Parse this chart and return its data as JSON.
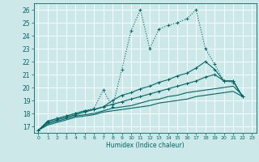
{
  "xlabel": "Humidex (Indice chaleur)",
  "bg_color": "#cce8e8",
  "grid_color": "#ffffff",
  "line_color": "#006666",
  "xlim": [
    -0.5,
    23.5
  ],
  "ylim": [
    16.5,
    26.5
  ],
  "xticks": [
    0,
    1,
    2,
    3,
    4,
    5,
    6,
    7,
    8,
    9,
    10,
    11,
    12,
    13,
    14,
    15,
    16,
    17,
    18,
    19,
    20,
    21,
    22,
    23
  ],
  "yticks": [
    17,
    18,
    19,
    20,
    21,
    22,
    23,
    24,
    25,
    26
  ],
  "lines": [
    {
      "x": [
        0,
        1,
        2,
        3,
        4,
        5,
        6,
        7,
        8,
        9,
        10,
        11,
        12,
        13,
        14,
        15,
        16,
        17,
        18,
        19,
        20,
        21,
        22
      ],
      "y": [
        16.7,
        17.4,
        17.6,
        17.8,
        18.0,
        18.2,
        18.4,
        19.8,
        18.5,
        21.4,
        24.4,
        26.0,
        23.0,
        24.5,
        24.8,
        25.0,
        25.3,
        26.0,
        23.0,
        21.8,
        20.5,
        20.4,
        19.3
      ],
      "style": ":",
      "lw": 0.8,
      "marker": "+",
      "ms": 3.5
    },
    {
      "x": [
        0,
        1,
        2,
        3,
        4,
        5,
        6,
        7,
        8,
        9,
        10,
        11,
        12,
        13,
        14,
        15,
        16,
        17,
        18,
        19,
        20,
        21,
        22
      ],
      "y": [
        16.7,
        17.4,
        17.6,
        17.8,
        18.0,
        18.2,
        18.3,
        18.5,
        19.0,
        19.4,
        19.6,
        19.9,
        20.1,
        20.4,
        20.6,
        20.9,
        21.1,
        21.5,
        22.0,
        21.4,
        20.5,
        20.5,
        19.3
      ],
      "style": "-",
      "lw": 0.8,
      "marker": "+",
      "ms": 3.5
    },
    {
      "x": [
        0,
        1,
        2,
        3,
        4,
        5,
        6,
        7,
        8,
        9,
        10,
        11,
        12,
        13,
        14,
        15,
        16,
        17,
        18,
        19,
        20,
        21,
        22
      ],
      "y": [
        16.7,
        17.3,
        17.5,
        17.7,
        17.9,
        18.1,
        18.3,
        18.5,
        18.7,
        18.9,
        19.1,
        19.3,
        19.5,
        19.7,
        19.9,
        20.1,
        20.3,
        20.5,
        20.8,
        21.0,
        20.5,
        20.5,
        19.3
      ],
      "style": "-",
      "lw": 0.8,
      "marker": "+",
      "ms": 3.5
    },
    {
      "x": [
        0,
        1,
        2,
        3,
        4,
        5,
        6,
        7,
        8,
        9,
        10,
        11,
        12,
        13,
        14,
        15,
        16,
        17,
        18,
        19,
        20,
        21,
        22
      ],
      "y": [
        16.7,
        17.2,
        17.4,
        17.6,
        17.8,
        17.9,
        18.0,
        18.2,
        18.4,
        18.5,
        18.6,
        18.8,
        19.0,
        19.1,
        19.3,
        19.4,
        19.6,
        19.7,
        19.8,
        19.9,
        20.0,
        20.1,
        19.4
      ],
      "style": "-",
      "lw": 0.8,
      "marker": null,
      "ms": 0
    },
    {
      "x": [
        0,
        1,
        2,
        3,
        4,
        5,
        6,
        7,
        8,
        9,
        10,
        11,
        12,
        13,
        14,
        15,
        16,
        17,
        18,
        19,
        20,
        21,
        22
      ],
      "y": [
        16.7,
        17.1,
        17.3,
        17.5,
        17.7,
        17.8,
        17.9,
        18.1,
        18.2,
        18.3,
        18.4,
        18.5,
        18.6,
        18.8,
        18.9,
        19.0,
        19.1,
        19.3,
        19.4,
        19.5,
        19.6,
        19.7,
        19.3
      ],
      "style": "-",
      "lw": 0.8,
      "marker": null,
      "ms": 0
    }
  ]
}
